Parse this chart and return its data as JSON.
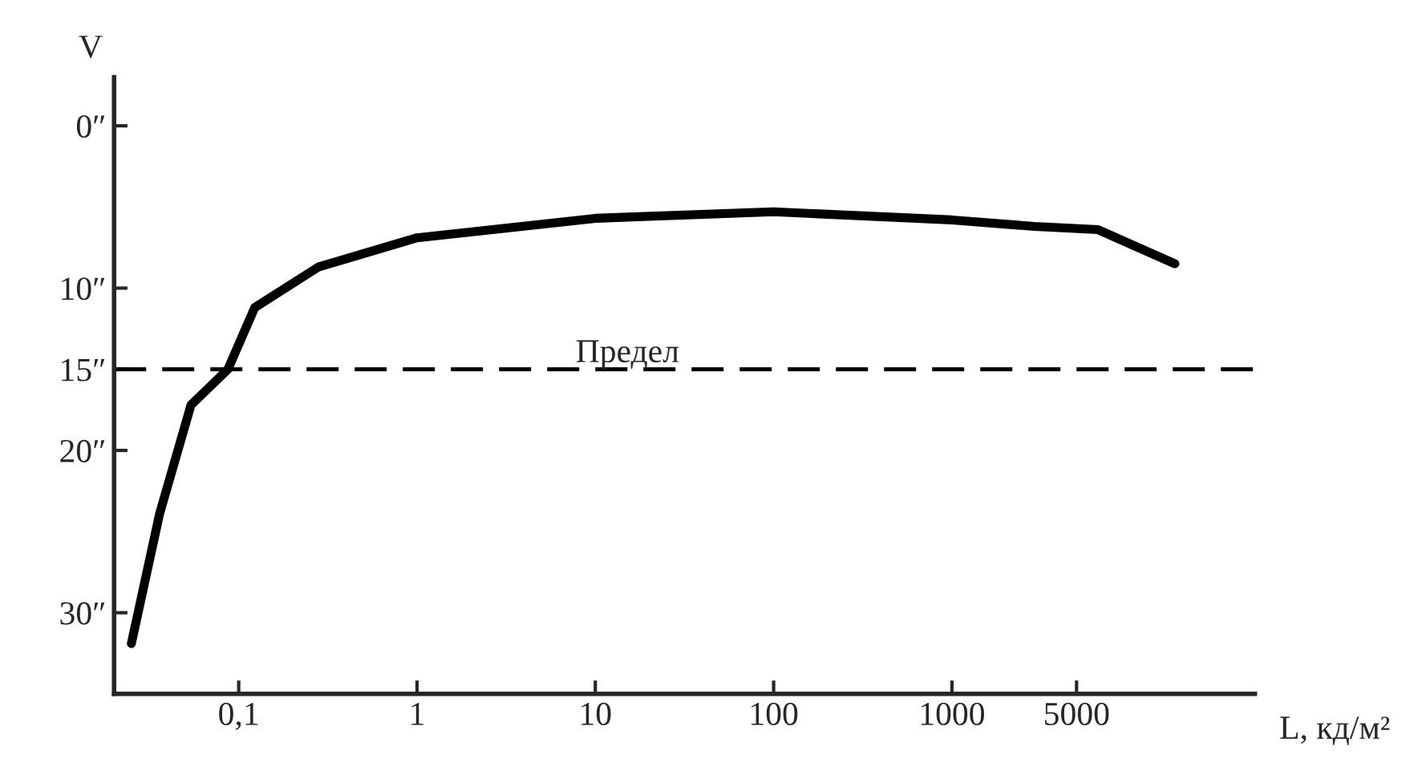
{
  "chart_data": {
    "type": "line",
    "xlabel": "L, кд/м²",
    "ylabel": "V",
    "log": "x",
    "x": [
      0.025,
      0.036,
      0.054,
      0.087,
      0.123,
      0.28,
      1,
      10,
      100,
      1000,
      2900,
      6600,
      17800
    ],
    "series": [
      {
        "color": "#000000",
        "values": [
          31.9,
          23.9,
          17.2,
          15,
          11.2,
          8.7,
          6.9,
          5.7,
          5.3,
          5.8,
          6.2,
          6.4,
          8.5
        ]
      }
    ],
    "xlim": [
      0.02,
      50000
    ],
    "ylim": [
      35,
      -3
    ],
    "xticks": [
      {
        "value": 0.1,
        "label": "0,1"
      },
      1,
      10,
      100,
      1000,
      5000
    ],
    "yticks": [
      {
        "value": 0,
        "label": "0″"
      },
      {
        "value": 10,
        "label": "10″"
      },
      {
        "value": 15,
        "label": "15″"
      },
      {
        "value": 20,
        "label": "20″"
      },
      {
        "value": 30,
        "label": "30″"
      }
    ],
    "ref_lines": [
      {
        "axis": "y",
        "value": 15,
        "label": "Предел",
        "color": "#000000",
        "line_style": "dashed"
      }
    ],
    "grid": false,
    "legend": false,
    "marker": "none",
    "line_style": "solid"
  }
}
